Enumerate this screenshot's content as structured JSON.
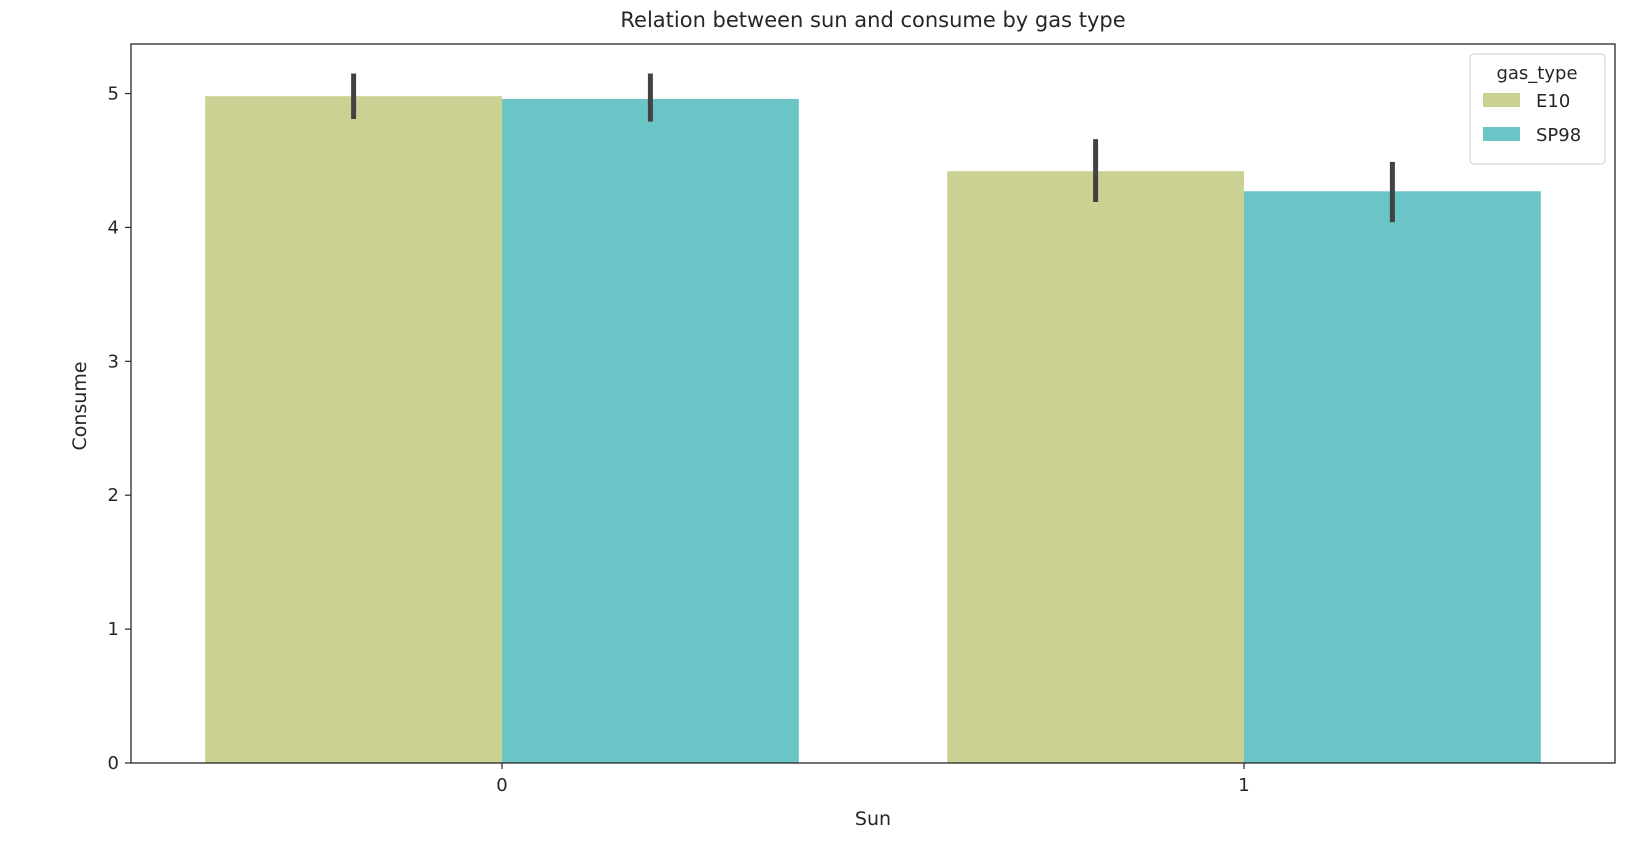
{
  "chart_data": {
    "type": "bar",
    "title": "Relation between sun and consume by gas type",
    "xlabel": "Sun",
    "ylabel": "Consume",
    "categories": [
      "0",
      "1"
    ],
    "ylim": [
      0,
      5.37
    ],
    "yticks": [
      "0",
      "1",
      "2",
      "3",
      "4",
      "5"
    ],
    "series": [
      {
        "name": "E10",
        "color": "#cbd093",
        "values": [
          4.98,
          4.42
        ],
        "error_low": [
          4.81,
          4.19
        ],
        "error_high": [
          5.15,
          4.66
        ]
      },
      {
        "name": "SP98",
        "color": "#6bc4c6",
        "values": [
          4.96,
          4.27
        ],
        "error_low": [
          4.79,
          4.04
        ],
        "error_high": [
          5.15,
          4.49
        ]
      }
    ],
    "legend": {
      "title": "gas_type",
      "position": "top-right"
    },
    "grid": false
  }
}
